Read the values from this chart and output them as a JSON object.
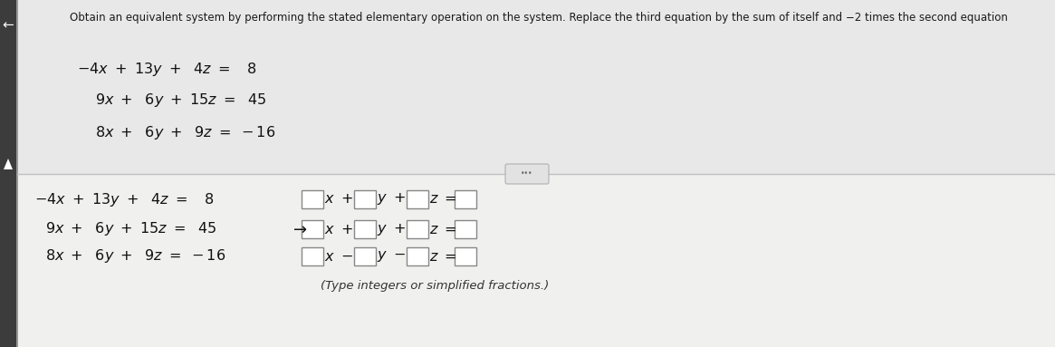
{
  "title": "Obtain an equivalent system by performing the stated elementary operation on the system. Replace the third equation by the sum of itself and −2 times the second equation",
  "bg_top": "#e8e8e8",
  "bg_bottom": "#f0f0ef",
  "left_bar_color": "#3a3a3a",
  "divider_color": "#c0c0c0",
  "note": "(Type integers or simplified fractions.)",
  "font_size_title": 8.5,
  "font_size_eq": 11.5,
  "font_size_note": 9.5,
  "eq1_tex": "$-4x + 13y + 4z = \\phantom{-}8$",
  "eq2_tex": "$9x + 6y + 15z = 45$",
  "eq3_tex": "$8x + 6y + 9z = -16$",
  "eq1_tex_b": "$-4x + 13y + 4z = \\phantom{-}8$",
  "eq2_tex_b": "$9x + 6y + 15z = 45$",
  "eq3_tex_b": "$8x + 6y + 9z = -16$"
}
